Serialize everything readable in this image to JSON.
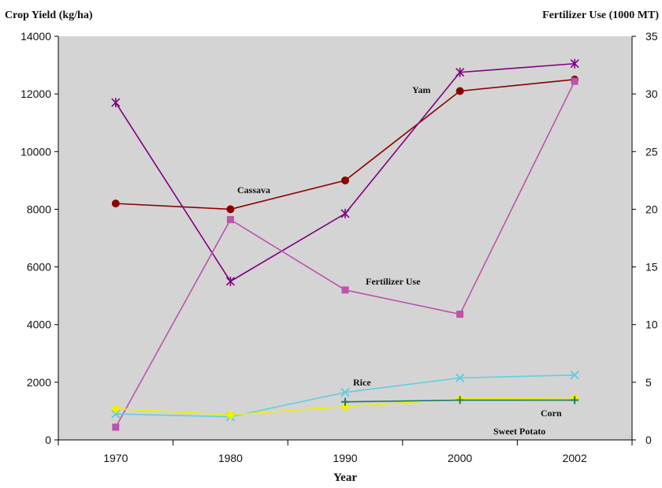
{
  "chart_data": {
    "type": "line",
    "title": "",
    "xlabel": "Year",
    "ylabel_left": "Crop Yield (kg/ha)",
    "ylabel_right": "Fertilizer Use (1000 MT)",
    "categories": [
      "1970",
      "1980",
      "1990",
      "2000",
      "2002"
    ],
    "ylim_left": [
      0,
      14000
    ],
    "yticks_left": [
      "0",
      "2000",
      "4000",
      "6000",
      "8000",
      "10000",
      "12000",
      "14000"
    ],
    "ylim_right": [
      0,
      35
    ],
    "yticks_right": [
      "0",
      "5",
      "10",
      "15",
      "20",
      "25",
      "30",
      "35"
    ],
    "grid": false,
    "plot_background": "#d4d4d4",
    "series": [
      {
        "name": "Cassava",
        "axis": "left",
        "color": "#8b0000",
        "marker": "circle",
        "values": [
          8200,
          8000,
          9000,
          12100,
          12500
        ]
      },
      {
        "name": "Yam",
        "axis": "left",
        "color": "#800080",
        "marker": "star",
        "values": [
          11700,
          5500,
          7850,
          12750,
          13050
        ]
      },
      {
        "name": "Fertilizer Use",
        "axis": "right",
        "color": "#bb55aa",
        "marker": "square",
        "values": [
          1.1,
          19.1,
          13.0,
          10.9,
          31.1
        ]
      },
      {
        "name": "Rice",
        "axis": "left",
        "color": "#66ccdd",
        "marker": "x",
        "values": [
          900,
          800,
          1650,
          2150,
          2250
        ]
      },
      {
        "name": "Corn",
        "axis": "left",
        "color": "#f0f000",
        "marker": "diamond",
        "values": [
          1080,
          870,
          1150,
          1420,
          1460
        ]
      },
      {
        "name": "Sweet Potato",
        "axis": "left",
        "color": "#227766",
        "marker": "plus",
        "values": [
          null,
          null,
          1320,
          1380,
          1380
        ]
      }
    ],
    "annotations": [
      "Yam",
      "Cassava",
      "Fertilizer Use",
      "Rice",
      "Corn",
      "Sweet Potato"
    ]
  }
}
